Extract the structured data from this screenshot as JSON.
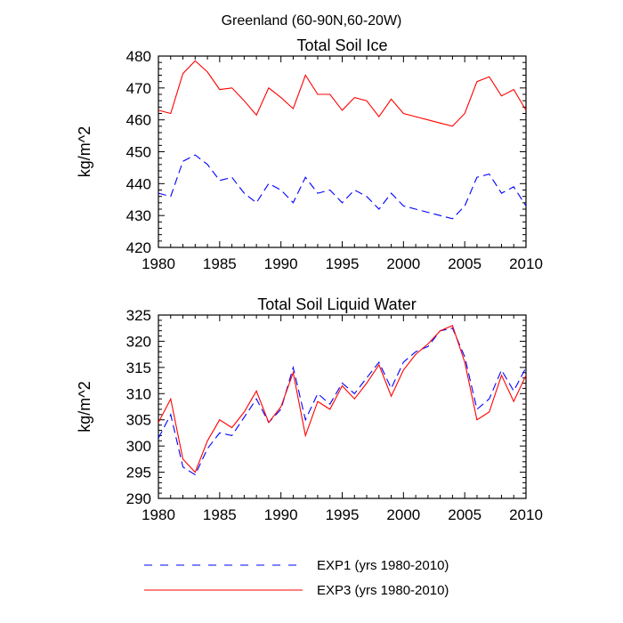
{
  "figure_title": "Greenland (60-90N,60-20W)",
  "chart_data": [
    {
      "type": "line",
      "title": "Total Soil Ice",
      "xlabel": "",
      "ylabel": "kg/m^2",
      "xlim": [
        1980,
        2010
      ],
      "ylim": [
        420,
        480
      ],
      "x_ticks": [
        1980,
        1985,
        1990,
        1995,
        2000,
        2005,
        2010
      ],
      "y_ticks": [
        420,
        430,
        440,
        450,
        460,
        470,
        480
      ],
      "x": [
        1980,
        1981,
        1982,
        1983,
        1984,
        1985,
        1986,
        1987,
        1988,
        1989,
        1990,
        1991,
        1992,
        1993,
        1994,
        1995,
        1996,
        1997,
        1998,
        1999,
        2000,
        2001,
        2002,
        2003,
        2004,
        2005,
        2006,
        2007,
        2008,
        2009,
        2010
      ],
      "series": [
        {
          "name": "EXP1 (yrs 1980-2010)",
          "color": "#0000ff",
          "dash": "dashed",
          "values": [
            437,
            436,
            447,
            449,
            446,
            441,
            442,
            437,
            434,
            440,
            438,
            434,
            442,
            437,
            438,
            434,
            438,
            436,
            432,
            437,
            433,
            432,
            431,
            430,
            429,
            433,
            442,
            443,
            437,
            439,
            433
          ]
        },
        {
          "name": "EXP3 (yrs 1980-2010)",
          "color": "#ff0000",
          "dash": "solid",
          "values": [
            463,
            462,
            474.5,
            478.5,
            475,
            469.5,
            470,
            466,
            461.5,
            470,
            467,
            463.5,
            474,
            468,
            468,
            463,
            467,
            466,
            461,
            466.5,
            462,
            461,
            460,
            459,
            458,
            462,
            472,
            473.5,
            467.5,
            469.5,
            463
          ]
        }
      ]
    },
    {
      "type": "line",
      "title": "Total Soil Liquid Water",
      "xlabel": "",
      "ylabel": "kg/m^2",
      "xlim": [
        1980,
        2010
      ],
      "ylim": [
        290,
        325
      ],
      "x_ticks": [
        1980,
        1985,
        1990,
        1995,
        2000,
        2005,
        2010
      ],
      "y_ticks": [
        290,
        295,
        300,
        305,
        310,
        315,
        320,
        325
      ],
      "x": [
        1980,
        1981,
        1982,
        1983,
        1984,
        1985,
        1986,
        1987,
        1988,
        1989,
        1990,
        1991,
        1992,
        1993,
        1994,
        1995,
        1996,
        1997,
        1998,
        1999,
        2000,
        2001,
        2002,
        2003,
        2004,
        2005,
        2006,
        2007,
        2008,
        2009,
        2010
      ],
      "series": [
        {
          "name": "EXP1 (yrs 1980-2010)",
          "color": "#0000ff",
          "dash": "dashed",
          "values": [
            301.5,
            306,
            296,
            294.5,
            299.5,
            302.5,
            302,
            305.5,
            309,
            304.5,
            307,
            315,
            305,
            310,
            308,
            312,
            310,
            313,
            316,
            311,
            316,
            318,
            319,
            322,
            322.5,
            317,
            307,
            309,
            314.5,
            310.5,
            315
          ]
        },
        {
          "name": "EXP3 (yrs 1980-2010)",
          "color": "#ff0000",
          "dash": "solid",
          "values": [
            304.5,
            309,
            297.5,
            295,
            301,
            305,
            303.5,
            306.5,
            310.5,
            304.5,
            307.5,
            314,
            302,
            308.5,
            307,
            311.5,
            309,
            312,
            315.5,
            309.5,
            314.5,
            317.5,
            319.5,
            322,
            323,
            316,
            305,
            306.5,
            313.5,
            308.5,
            313.5
          ]
        }
      ]
    }
  ],
  "legend": [
    {
      "label": "EXP1 (yrs 1980-2010)",
      "color": "#0000ff",
      "dash": "dashed"
    },
    {
      "label": "EXP3 (yrs 1980-2010)",
      "color": "#ff0000",
      "dash": "solid"
    }
  ]
}
